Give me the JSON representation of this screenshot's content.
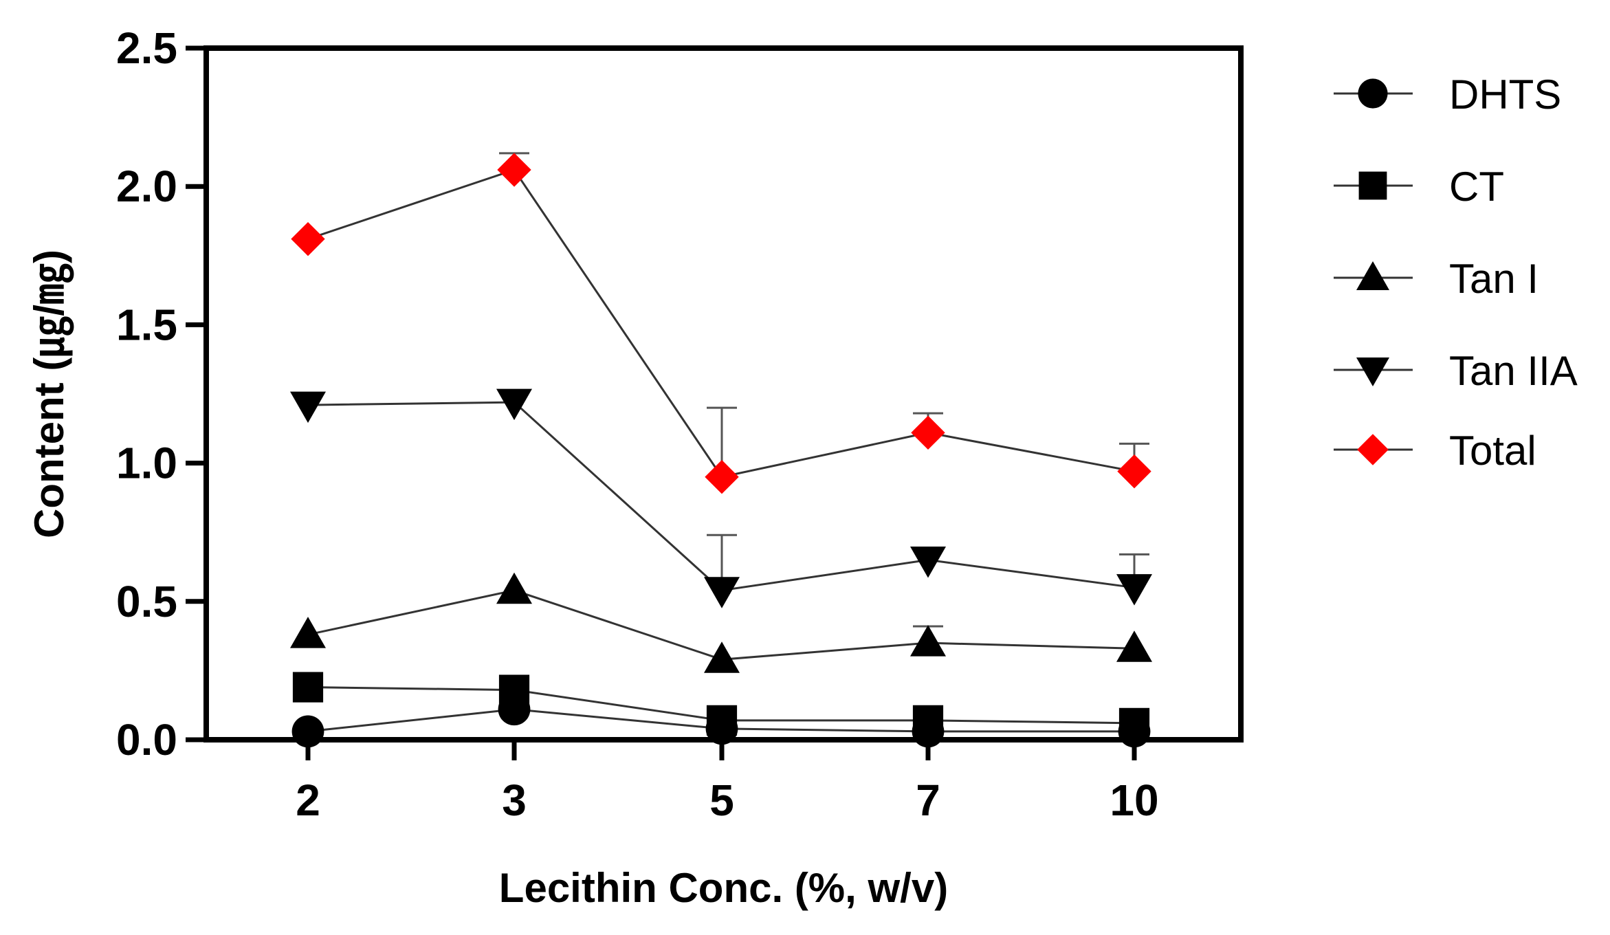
{
  "chart_data": {
    "type": "line",
    "title": "",
    "xlabel": "Lecithin Conc. (%, w/v)",
    "ylabel": "Content (㎍/㎎)",
    "categories": [
      "2",
      "3",
      "5",
      "7",
      "10"
    ],
    "ylim": [
      0,
      2.5
    ],
    "yticks": [
      "0.0",
      "0.5",
      "1.0",
      "1.5",
      "2.0",
      "2.5"
    ],
    "grid": false,
    "legend_position": "right",
    "series": [
      {
        "name": "DHTS",
        "marker": "circle",
        "color": "#000000",
        "values": [
          0.03,
          0.11,
          0.04,
          0.03,
          0.03
        ],
        "errors": [
          0,
          0,
          0,
          0,
          0
        ]
      },
      {
        "name": "CT",
        "marker": "square",
        "color": "#000000",
        "values": [
          0.19,
          0.18,
          0.07,
          0.07,
          0.06
        ],
        "errors": [
          0,
          0,
          0,
          0,
          0
        ]
      },
      {
        "name": "Tan I",
        "marker": "triangle-up",
        "color": "#000000",
        "values": [
          0.38,
          0.54,
          0.29,
          0.35,
          0.33
        ],
        "errors": [
          0,
          0,
          0,
          0.06,
          0
        ]
      },
      {
        "name": "Tan IIA",
        "marker": "triangle-down",
        "color": "#000000",
        "values": [
          1.21,
          1.22,
          0.54,
          0.65,
          0.55
        ],
        "errors": [
          0,
          0,
          0.2,
          0,
          0.12
        ]
      },
      {
        "name": "Total",
        "marker": "diamond",
        "color": "#ff0000",
        "values": [
          1.81,
          2.06,
          0.95,
          1.11,
          0.97
        ],
        "errors": [
          0,
          0.06,
          0.25,
          0.07,
          0.1
        ]
      }
    ]
  }
}
